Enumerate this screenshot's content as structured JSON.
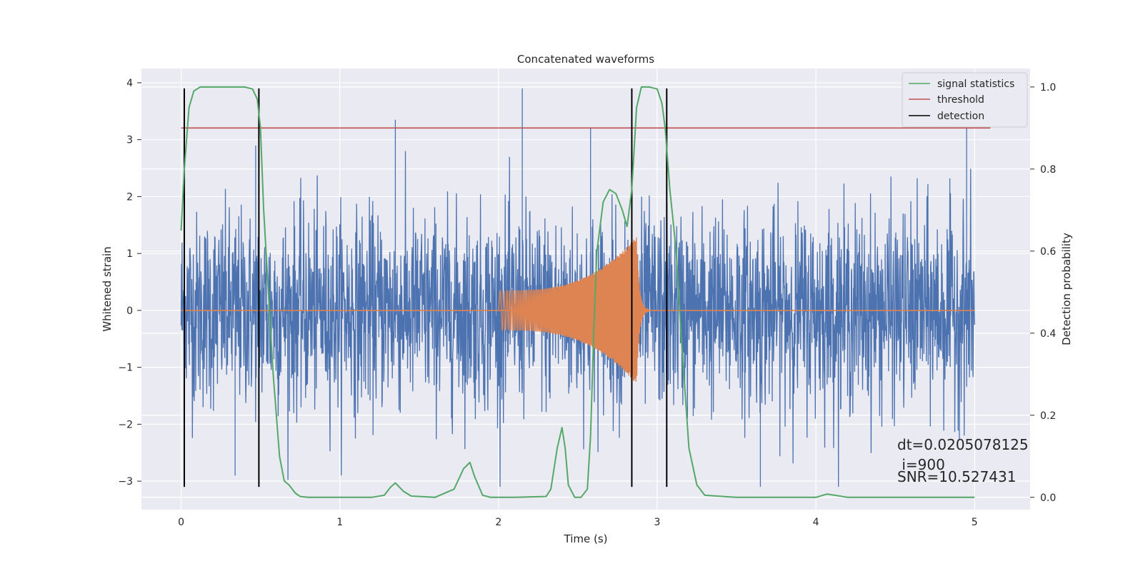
{
  "chart_data": {
    "type": "line",
    "title": "Concatenated waveforms",
    "xlabel": "Time (s)",
    "ylabel": "Whitened strain",
    "ylabel_right": "Detection probability",
    "xlim": [
      -0.25,
      5.35
    ],
    "ylim": [
      -3.5,
      4.25
    ],
    "ylim_right": [
      -0.03,
      1.045
    ],
    "xticks": [
      0,
      1,
      2,
      3,
      4,
      5
    ],
    "yticks": [
      -3,
      -2,
      -1,
      0,
      1,
      2,
      3,
      4
    ],
    "yticks_right": [
      0.0,
      0.2,
      0.4,
      0.6,
      0.8,
      1.0
    ],
    "xtick_labels": [
      "0",
      "1",
      "2",
      "3",
      "4",
      "5"
    ],
    "ytick_labels": [
      "−3",
      "−2",
      "−1",
      "0",
      "1",
      "2",
      "3",
      "4"
    ],
    "ytick_right_labels": [
      "0.0",
      "0.2",
      "0.4",
      "0.6",
      "0.8",
      "1.0"
    ],
    "grid": true,
    "legend": {
      "placement": "top-right",
      "entries": [
        {
          "label": "signal statistics",
          "color": "#55a868"
        },
        {
          "label": "threshold",
          "color": "#c44e52"
        },
        {
          "label": "detection",
          "color": "#000000"
        }
      ]
    },
    "colors": {
      "strain": "#4c72b0",
      "injection": "#dd8452",
      "signal_statistics": "#55a868",
      "threshold": "#c44e52",
      "detection": "#000000",
      "background": "#eaeaf2"
    },
    "series": [
      {
        "name": "signal statistics",
        "axis": "right",
        "x": [
          0,
          0.02,
          0.05,
          0.08,
          0.12,
          0.2,
          0.3,
          0.4,
          0.45,
          0.48,
          0.5,
          0.52,
          0.55,
          0.58,
          0.62,
          0.65,
          0.68,
          0.72,
          0.75,
          0.8,
          0.9,
          1.0,
          1.2,
          1.28,
          1.32,
          1.35,
          1.4,
          1.45,
          1.6,
          1.72,
          1.78,
          1.82,
          1.85,
          1.9,
          1.95,
          2.1,
          2.3,
          2.33,
          2.37,
          2.4,
          2.42,
          2.44,
          2.48,
          2.52,
          2.56,
          2.58,
          2.6,
          2.62,
          2.66,
          2.7,
          2.74,
          2.78,
          2.81,
          2.84,
          2.87,
          2.9,
          2.95,
          3.0,
          3.03,
          3.05,
          3.08,
          3.12,
          3.15,
          3.2,
          3.25,
          3.3,
          3.5,
          3.8,
          4.0,
          4.07,
          4.12,
          4.2,
          4.5,
          5.0
        ],
        "values": [
          0.65,
          0.8,
          0.95,
          0.99,
          1.0,
          1.0,
          1.0,
          1.0,
          0.995,
          0.97,
          0.9,
          0.7,
          0.5,
          0.3,
          0.1,
          0.04,
          0.03,
          0.01,
          0.002,
          0.0,
          0.0,
          0.0,
          0.0,
          0.005,
          0.025,
          0.035,
          0.015,
          0.003,
          0.0,
          0.02,
          0.07,
          0.085,
          0.05,
          0.005,
          0.0,
          0.0,
          0.002,
          0.02,
          0.12,
          0.17,
          0.12,
          0.03,
          0.0,
          0.0,
          0.02,
          0.15,
          0.4,
          0.6,
          0.72,
          0.75,
          0.74,
          0.7,
          0.66,
          0.75,
          0.95,
          1.0,
          1.0,
          0.995,
          0.96,
          0.9,
          0.75,
          0.6,
          0.4,
          0.12,
          0.03,
          0.005,
          0.0,
          0.0,
          0.0,
          0.008,
          0.005,
          0.0,
          0.0,
          0.0
        ]
      },
      {
        "name": "threshold",
        "axis": "right",
        "x": [
          0,
          5.1
        ],
        "values": [
          0.9,
          0.9
        ]
      }
    ],
    "strain_envelope": {
      "x": [
        0,
        0.5,
        1.0,
        1.5,
        2.0,
        2.5,
        3.0,
        3.5,
        4.0,
        4.5,
        5.0
      ],
      "rms": [
        0.9,
        0.9,
        0.9,
        0.9,
        0.9,
        0.9,
        0.9,
        0.9,
        0.9,
        0.9,
        0.9
      ],
      "max_peaks": [
        2.9,
        3.35,
        3.9,
        -3.1,
        3.3
      ]
    },
    "injection": {
      "start": 2.0,
      "end": 2.87,
      "amplitude_start": 0.35,
      "amplitude_end": 1.3,
      "ringdown_end": 2.95
    },
    "detections": [
      0.02,
      0.49,
      2.84,
      3.06
    ],
    "detection_range": [
      -3.1,
      3.9
    ],
    "annotations": [
      "dt=0.0205078125",
      " i=900",
      "SNR=10.527431"
    ]
  }
}
